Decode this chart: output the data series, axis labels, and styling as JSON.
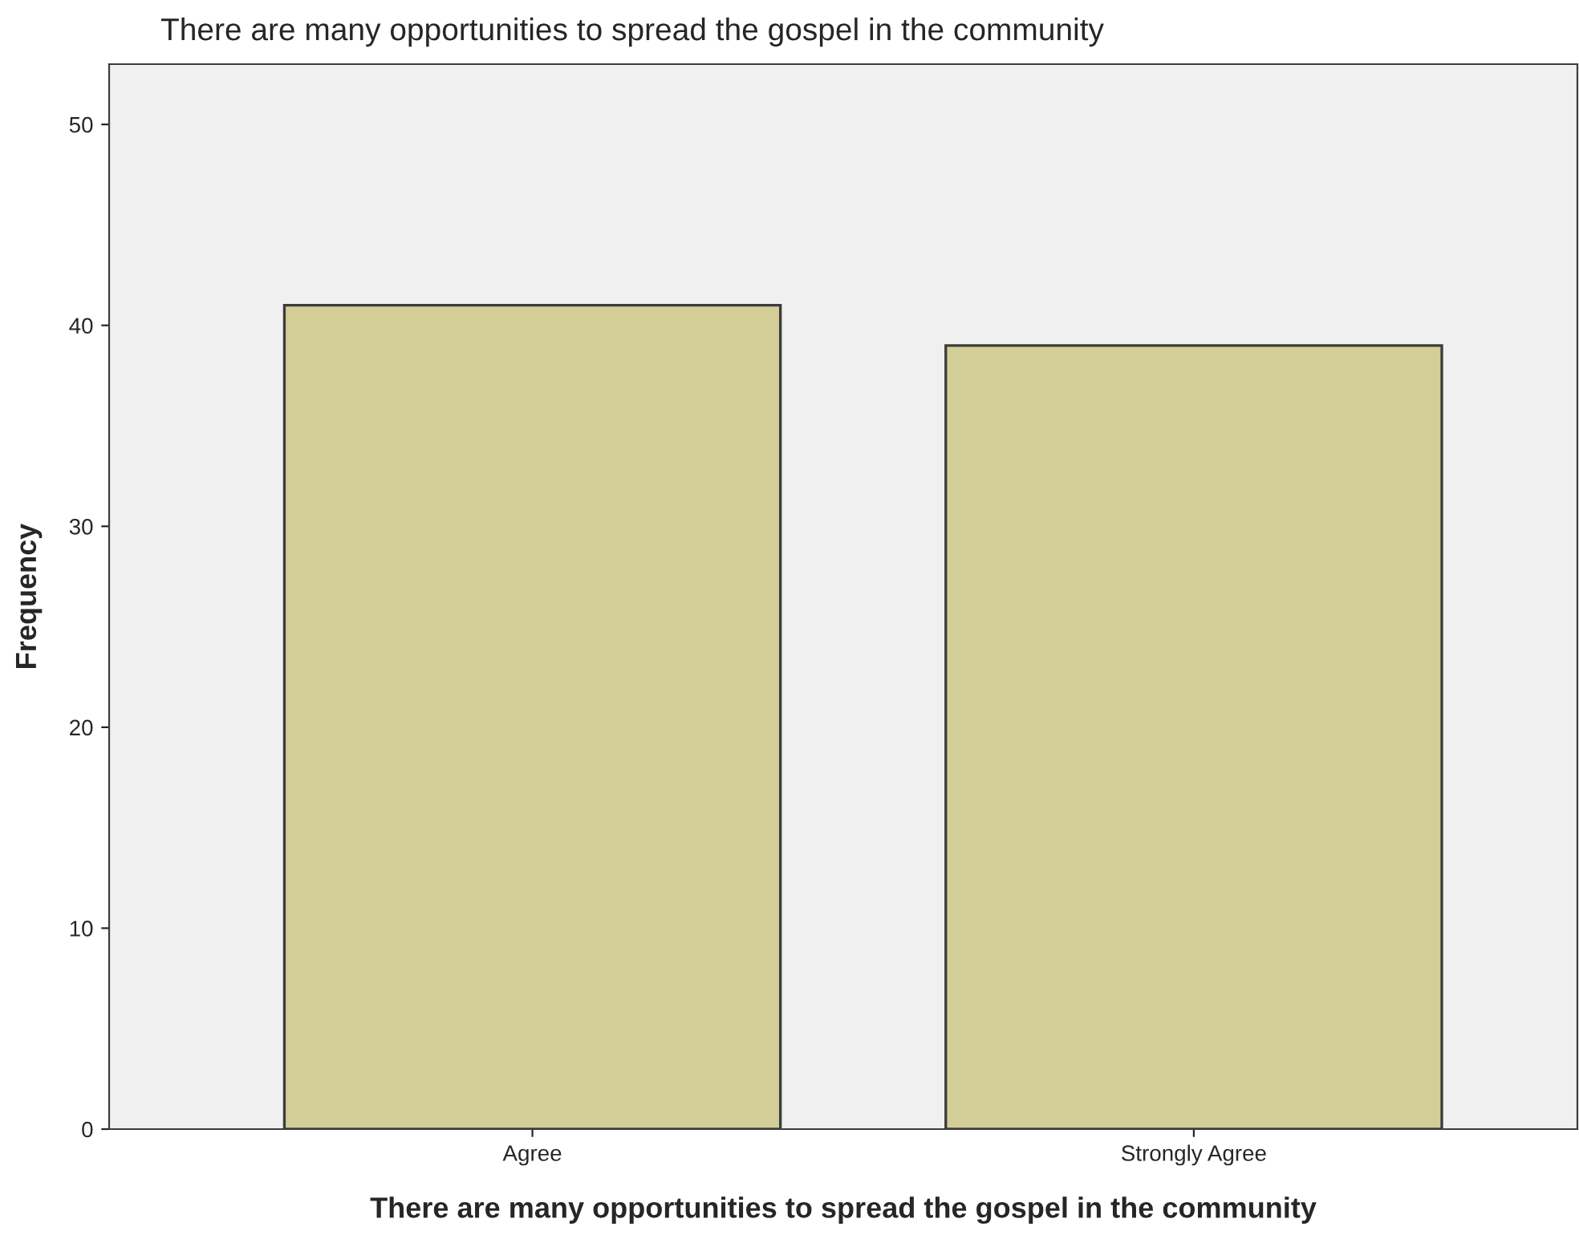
{
  "chart_data": {
    "type": "bar",
    "title": "There are many opportunities to spread the gospel in the community",
    "xlabel": "There are many opportunities to spread the gospel in the community",
    "ylabel": "Frequency",
    "categories": [
      "Agree",
      "Strongly Agree"
    ],
    "values": [
      41,
      39
    ],
    "color": "#d3ce97",
    "ylim": [
      0,
      53
    ],
    "yticks": [
      0,
      10,
      20,
      30,
      40,
      50
    ],
    "grid": false,
    "legend": false
  }
}
